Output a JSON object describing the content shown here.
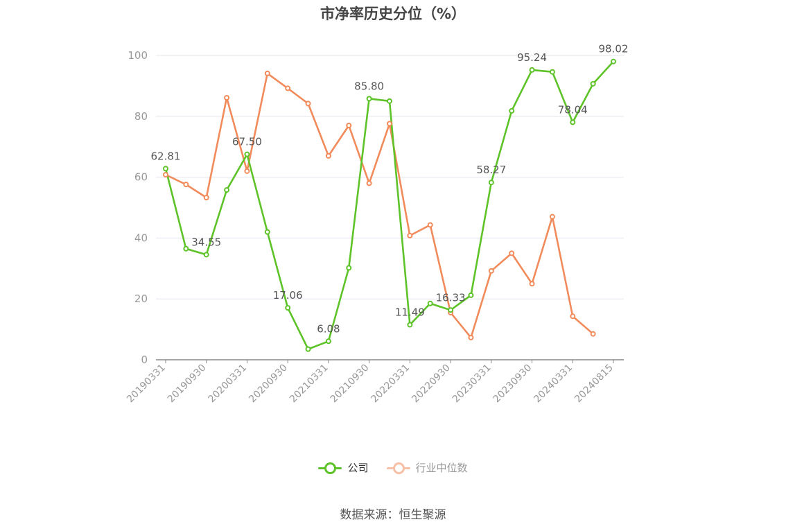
{
  "chart_data": {
    "type": "line",
    "title": "市净率历史分位（%）",
    "x": [
      "20190331",
      "20190630",
      "20190930",
      "20191231",
      "20200331",
      "20200630",
      "20200930",
      "20201231",
      "20210331",
      "20210630",
      "20210930",
      "20211231",
      "20220331",
      "20220630",
      "20220930",
      "20221231",
      "20230331",
      "20230630",
      "20230930",
      "20231231",
      "20240331",
      "20240630",
      "20240815"
    ],
    "x_tick_labels": [
      "20190331",
      "20190930",
      "20200331",
      "20200930",
      "20210331",
      "20210930",
      "20220331",
      "20220930",
      "20230331",
      "20230930",
      "20240331",
      "20240815"
    ],
    "ylim": [
      0,
      100
    ],
    "y_ticks": [
      0,
      20,
      40,
      60,
      80,
      100
    ],
    "grid": true,
    "legend_position": "bottom",
    "series": [
      {
        "name": "公司",
        "color": "#5ec328",
        "values": [
          62.81,
          36.5,
          34.55,
          55.8,
          67.5,
          42.0,
          17.06,
          3.5,
          6.08,
          30.2,
          85.8,
          85.0,
          11.49,
          18.5,
          16.33,
          21.2,
          58.27,
          81.8,
          95.24,
          94.6,
          78.04,
          90.7,
          98.02
        ],
        "labels": {
          "0": "62.81",
          "2": "34.55",
          "4": "67.50",
          "6": "17.06",
          "8": "6.08",
          "10": "85.80",
          "12": "11.49",
          "14": "16.33",
          "16": "58.27",
          "18": "95.24",
          "20": "78.04",
          "22": "98.02"
        }
      },
      {
        "name": "行业中位数",
        "color": "#f28b5c",
        "values": [
          60.8,
          57.6,
          53.3,
          86.1,
          62.0,
          94.1,
          89.2,
          84.2,
          67.0,
          77.0,
          58.0,
          77.6,
          40.8,
          44.3,
          15.5,
          7.3,
          29.2,
          35.0,
          25.0,
          47.0,
          14.3,
          8.5,
          null
        ]
      }
    ]
  },
  "source": "数据来源：恒生聚源"
}
